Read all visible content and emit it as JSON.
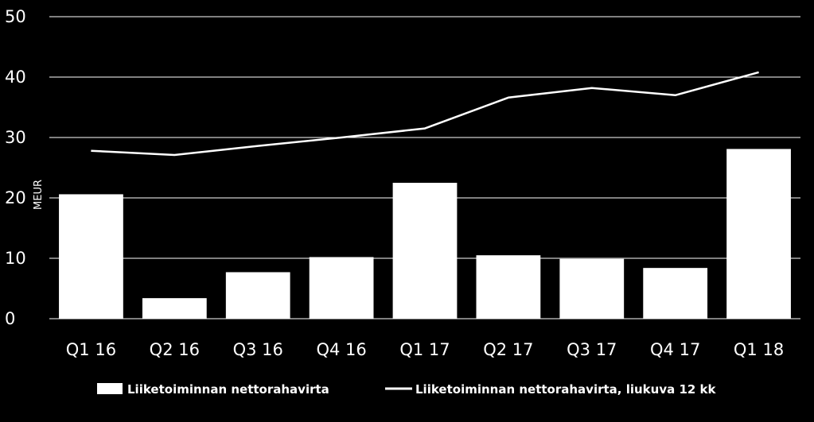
{
  "chart_data": {
    "type": "bar",
    "categories": [
      "Q1 16",
      "Q2 16",
      "Q3 16",
      "Q4 16",
      "Q1 17",
      "Q2 17",
      "Q3 17",
      "Q4 17",
      "Q1 18"
    ],
    "series": [
      {
        "name": "Liiketoiminnan nettorahavirta",
        "type": "bar",
        "values": [
          20.6,
          3.4,
          7.7,
          10.2,
          22.5,
          10.5,
          9.9,
          8.4,
          28.1
        ]
      },
      {
        "name": "Liiketoiminnan nettorahavirta, liukuva 12 kk",
        "type": "line",
        "values": [
          27.8,
          27.1,
          28.6,
          30.0,
          31.5,
          36.6,
          38.2,
          37.0,
          40.8
        ]
      }
    ],
    "title": "",
    "xlabel": "",
    "ylabel": "MEUR",
    "ylim": [
      0,
      50
    ],
    "yticks": [
      0,
      10,
      20,
      30,
      40,
      50
    ],
    "grid": true,
    "legend_position": "bottom",
    "colors": {
      "background": "#000000",
      "bars": "#ffffff",
      "line": "#ffffff",
      "grid": "#ffffff",
      "text": "#ffffff"
    }
  }
}
